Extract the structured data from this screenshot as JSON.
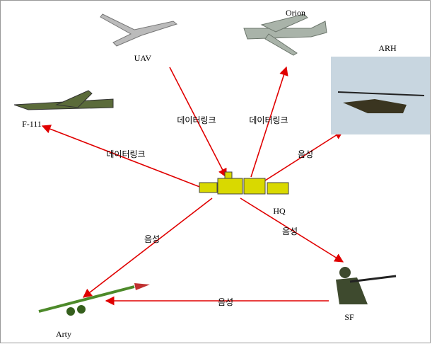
{
  "nodes": [
    {
      "label": "UAV"
    },
    {
      "label": "Orion"
    },
    {
      "label": "ARH"
    },
    {
      "label": "F-111"
    },
    {
      "label": "HQ"
    },
    {
      "label": "SF"
    },
    {
      "label": "Arty"
    }
  ],
  "edges": [
    {
      "label": "데이터링크"
    },
    {
      "label": "데이터링크"
    },
    {
      "label": "데이터링크"
    },
    {
      "label": "음성"
    },
    {
      "label": "음성"
    },
    {
      "label": "음성"
    },
    {
      "label": "음성"
    }
  ]
}
